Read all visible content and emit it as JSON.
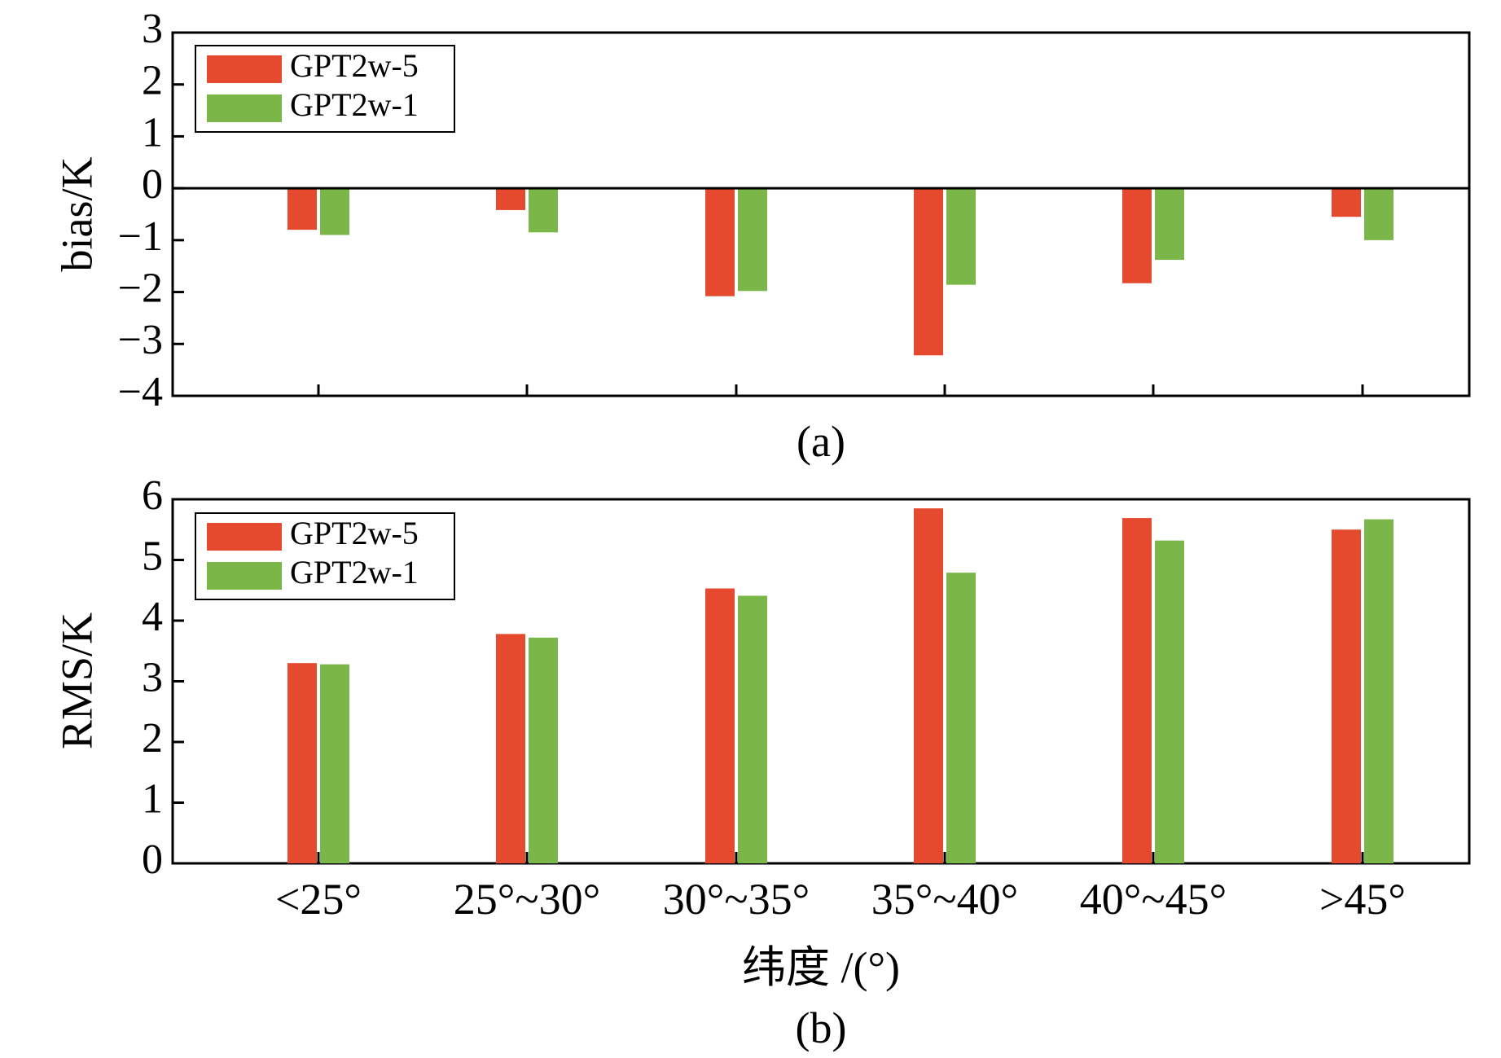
{
  "chart_data": [
    {
      "panel": "(a)",
      "type": "bar",
      "categories": [
        "<25°",
        "25°~30°",
        "30°~35°",
        "35°~40°",
        "40°~45°",
        ">45°"
      ],
      "series": [
        {
          "name": "GPT2w-5",
          "color": "#e64a2e",
          "values": [
            -0.8,
            -0.42,
            -2.08,
            -3.22,
            -1.83,
            -0.55
          ]
        },
        {
          "name": "GPT2w-1",
          "color": "#7ab648",
          "values": [
            -0.9,
            -0.85,
            -1.98,
            -1.86,
            -1.38,
            -1.0
          ]
        }
      ],
      "ylabel": "bias/K",
      "ylim": [
        -4,
        3
      ],
      "yticks": [
        "−4",
        "−3",
        "−2",
        "−1",
        "0",
        "1",
        "2",
        "3"
      ],
      "legend": "top-left",
      "grid": false
    },
    {
      "panel": "(b)",
      "type": "bar",
      "categories": [
        "<25°",
        "25°~30°",
        "30°~35°",
        "35°~40°",
        "40°~45°",
        ">45°"
      ],
      "series": [
        {
          "name": "GPT2w-5",
          "color": "#e64a2e",
          "values": [
            3.3,
            3.78,
            4.53,
            5.85,
            5.69,
            5.5
          ]
        },
        {
          "name": "GPT2w-1",
          "color": "#7ab648",
          "values": [
            3.28,
            3.72,
            4.41,
            4.79,
            5.32,
            5.67
          ]
        }
      ],
      "xlabel": "纬度 /(°)",
      "ylabel": "RMS/K",
      "ylim": [
        0,
        6
      ],
      "yticks": [
        "0",
        "1",
        "2",
        "3",
        "4",
        "5",
        "6"
      ],
      "legend": "top-left",
      "grid": false
    }
  ]
}
